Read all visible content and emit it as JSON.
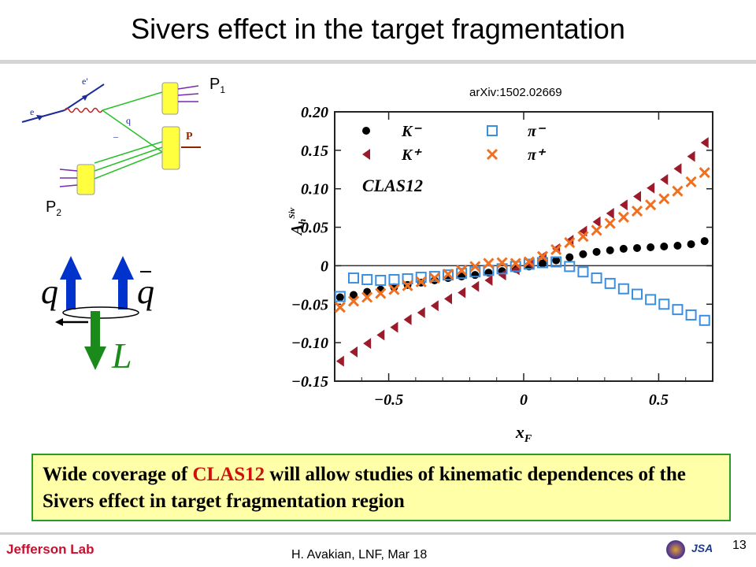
{
  "slide": {
    "title": "Sivers effect in the target fragmentation",
    "reference": "arXiv:1502.02669",
    "p1_label": "P",
    "p1_sub": "1",
    "p2_label": "P",
    "p2_sub": "2",
    "callout": {
      "part1": "Wide coverage of ",
      "highlight": "CLAS12",
      "part2": " will allow studies of kinematic dependences of the Sivers effect in target fragmentation region"
    },
    "footer": "H. Avakian,  LNF,  Mar 18",
    "page_number": "13",
    "logo": "Jefferson Lab",
    "jsa_logo": "JSA"
  },
  "diagram": {
    "e_label": "e",
    "eprime_label": "e'",
    "q_label": "q",
    "qbar_label": "–",
    "P_label": "P",
    "spin_q": "q",
    "spin_qbar": "q",
    "spin_L": "L"
  },
  "chart_data": {
    "type": "scatter",
    "xlabel": "x",
    "xlabel_sub": "F",
    "ylabel": "A",
    "ylabel_sub": "h",
    "ylabel_sup": "Siv",
    "annotation": "CLAS12",
    "xlim": [
      -0.7,
      0.7
    ],
    "ylim": [
      -0.15,
      0.2
    ],
    "xticks": [
      -0.5,
      0,
      0.5
    ],
    "xticklabels": [
      "−0.5",
      "0",
      "0.5"
    ],
    "yticks": [
      -0.15,
      -0.1,
      -0.05,
      0,
      0.05,
      0.1,
      0.15,
      0.2
    ],
    "yticklabels": [
      "−0.15",
      "−0.10",
      "−0.05",
      "0",
      "0.05",
      "0.10",
      "0.15",
      "0.20"
    ],
    "series": [
      {
        "name": "K⁻",
        "marker": "circle",
        "color": "#000000",
        "x": [
          -0.68,
          -0.63,
          -0.58,
          -0.53,
          -0.48,
          -0.43,
          -0.38,
          -0.33,
          -0.28,
          -0.23,
          -0.18,
          -0.13,
          -0.08,
          -0.03,
          0.02,
          0.07,
          0.12,
          0.17,
          0.22,
          0.27,
          0.32,
          0.37,
          0.42,
          0.47,
          0.52,
          0.57,
          0.62,
          0.67
        ],
        "y": [
          -0.041,
          -0.038,
          -0.034,
          -0.031,
          -0.028,
          -0.025,
          -0.022,
          -0.019,
          -0.016,
          -0.014,
          -0.012,
          -0.009,
          -0.007,
          -0.004,
          -0.001,
          0.003,
          0.007,
          0.011,
          0.015,
          0.018,
          0.02,
          0.022,
          0.023,
          0.024,
          0.025,
          0.026,
          0.028,
          0.032
        ]
      },
      {
        "name": "K⁺",
        "marker": "triangle",
        "color": "#9b1b2b",
        "x": [
          -0.68,
          -0.63,
          -0.58,
          -0.53,
          -0.48,
          -0.43,
          -0.38,
          -0.33,
          -0.28,
          -0.23,
          -0.18,
          -0.13,
          -0.08,
          -0.03,
          0.02,
          0.07,
          0.12,
          0.17,
          0.22,
          0.27,
          0.32,
          0.37,
          0.42,
          0.47,
          0.52,
          0.57,
          0.62,
          0.67
        ],
        "y": [
          -0.124,
          -0.112,
          -0.101,
          -0.09,
          -0.08,
          -0.07,
          -0.061,
          -0.052,
          -0.043,
          -0.035,
          -0.027,
          -0.019,
          -0.012,
          -0.005,
          0.003,
          0.012,
          0.022,
          0.033,
          0.045,
          0.057,
          0.068,
          0.079,
          0.09,
          0.101,
          0.112,
          0.126,
          0.142,
          0.16
        ]
      },
      {
        "name": "π⁻",
        "marker": "square",
        "color": "#3a8fe0",
        "x": [
          -0.68,
          -0.63,
          -0.58,
          -0.53,
          -0.48,
          -0.43,
          -0.38,
          -0.33,
          -0.28,
          -0.23,
          -0.18,
          -0.13,
          -0.08,
          -0.03,
          0.02,
          0.07,
          0.12,
          0.17,
          0.22,
          0.27,
          0.32,
          0.37,
          0.42,
          0.47,
          0.52,
          0.57,
          0.62,
          0.67
        ],
        "y": [
          -0.04,
          -0.016,
          -0.018,
          -0.019,
          -0.018,
          -0.017,
          -0.015,
          -0.014,
          -0.012,
          -0.01,
          -0.008,
          -0.006,
          -0.004,
          -0.001,
          0.002,
          0.004,
          0.005,
          -0.001,
          -0.008,
          -0.016,
          -0.023,
          -0.03,
          -0.037,
          -0.044,
          -0.05,
          -0.057,
          -0.064,
          -0.071
        ]
      },
      {
        "name": "π⁺",
        "marker": "cross",
        "color": "#f07020",
        "x": [
          -0.68,
          -0.63,
          -0.58,
          -0.53,
          -0.48,
          -0.43,
          -0.38,
          -0.33,
          -0.28,
          -0.23,
          -0.18,
          -0.13,
          -0.08,
          -0.03,
          0.02,
          0.07,
          0.12,
          0.17,
          0.22,
          0.27,
          0.32,
          0.37,
          0.42,
          0.47,
          0.52,
          0.57,
          0.62,
          0.67
        ],
        "y": [
          -0.054,
          -0.046,
          -0.041,
          -0.036,
          -0.031,
          -0.026,
          -0.021,
          -0.016,
          -0.011,
          -0.006,
          -0.001,
          0.003,
          0.004,
          0.003,
          0.005,
          0.012,
          0.021,
          0.03,
          0.038,
          0.046,
          0.055,
          0.063,
          0.071,
          0.079,
          0.087,
          0.097,
          0.109,
          0.121
        ]
      }
    ],
    "legend": {
      "position": "top",
      "labels": [
        "K⁻",
        "K⁺",
        "π⁻",
        "π⁺"
      ]
    }
  }
}
